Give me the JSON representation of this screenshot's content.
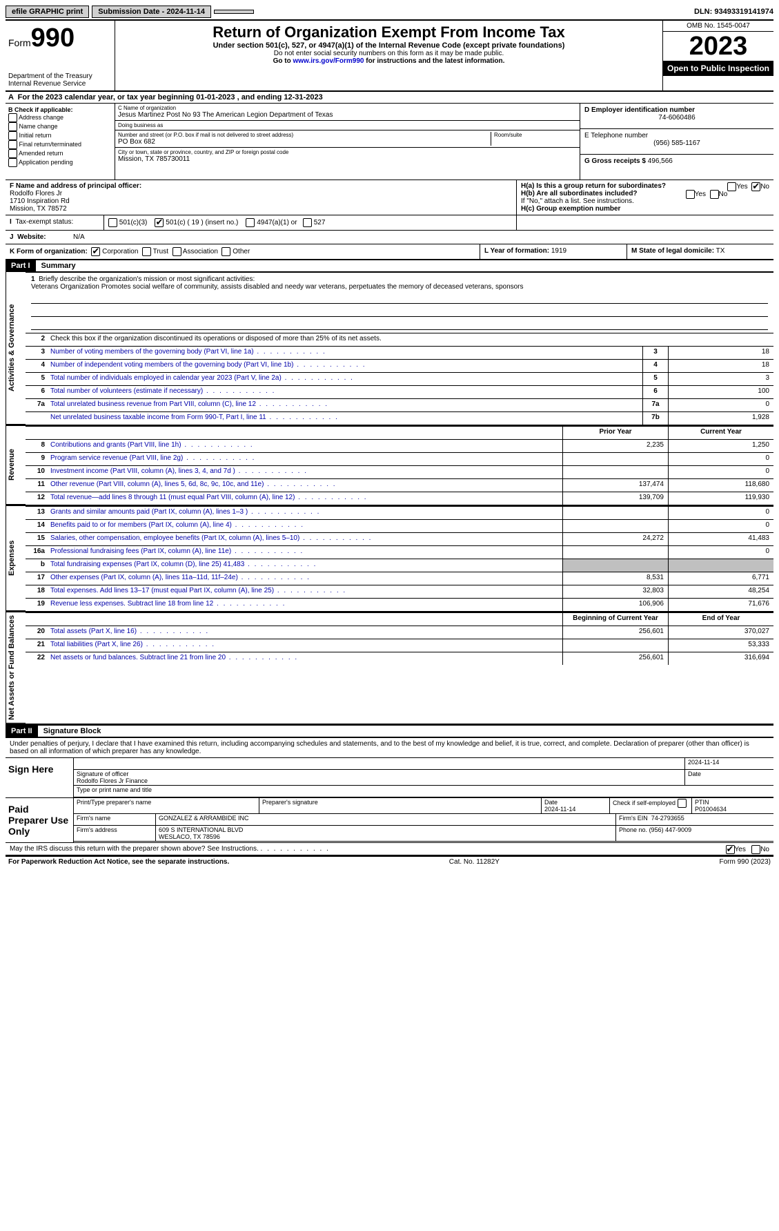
{
  "topbar": {
    "efile": "efile GRAPHIC print",
    "submission_label": "Submission Date - 2024-11-14",
    "dln": "DLN: 93493319141974"
  },
  "header": {
    "form_word": "Form",
    "form_no": "990",
    "dept": "Department of the Treasury\nInternal Revenue Service",
    "title": "Return of Organization Exempt From Income Tax",
    "sub": "Under section 501(c), 527, or 4947(a)(1) of the Internal Revenue Code (except private foundations)",
    "ssn_note": "Do not enter social security numbers on this form as it may be made public.",
    "goto_prefix": "Go to ",
    "goto_link": "www.irs.gov/Form990",
    "goto_suffix": " for instructions and the latest information.",
    "omb": "OMB No. 1545-0047",
    "year": "2023",
    "open": "Open to Public Inspection"
  },
  "a_line": "For the 2023 calendar year, or tax year beginning 01-01-2023    , and ending 12-31-2023",
  "box_b": {
    "label": "B Check if applicable:",
    "items": [
      "Address change",
      "Name change",
      "Initial return",
      "Final return/terminated",
      "Amended return",
      "Application pending"
    ]
  },
  "box_c": {
    "name_hint": "C Name of organization",
    "name": "Jesus Martinez Post No 93 The American Legion Department of Texas",
    "dba_hint": "Doing business as",
    "dba": "",
    "street_hint": "Number and street (or P.O. box if mail is not delivered to street address)",
    "street": "PO Box 682",
    "room_hint": "Room/suite",
    "city_hint": "City or town, state or province, country, and ZIP or foreign postal code",
    "city": "Mission, TX  785730011"
  },
  "box_d": {
    "label": "D Employer identification number",
    "value": "74-6060486"
  },
  "box_e": {
    "label": "E Telephone number",
    "value": "(956) 585-1167"
  },
  "box_g": {
    "label": "G Gross receipts $",
    "value": "496,566"
  },
  "principal": {
    "label": "F  Name and address of principal officer:",
    "name": "Rodolfo Flores Jr",
    "street": "1710 Inspiration Rd",
    "city": "Mission, TX  78572"
  },
  "box_h": {
    "a": "H(a)  Is this a group return for subordinates?",
    "b": "H(b)  Are all subordinates included?",
    "b_note": "If \"No,\" attach a list. See instructions.",
    "c": "H(c)  Group exemption number",
    "yes": "Yes",
    "no": "No"
  },
  "status": {
    "label": "Tax-exempt status:",
    "c3": "501(c)(3)",
    "c": "501(c) ( 19 ) (insert no.)",
    "a1": "4947(a)(1) or",
    "s527": "527"
  },
  "website": {
    "label": "Website:",
    "value": "N/A"
  },
  "form_org": {
    "label": "K Form of organization:",
    "corp": "Corporation",
    "trust": "Trust",
    "assoc": "Association",
    "other": "Other"
  },
  "box_l": {
    "label": "L Year of formation:",
    "value": "1919"
  },
  "box_m": {
    "label": "M State of legal domicile:",
    "value": "TX"
  },
  "part1": {
    "header": "Part I",
    "title": "Summary",
    "mission_label": "Briefly describe the organization's mission or most significant activities:",
    "mission": "Veterans Organization Promotes social welfare of community, assists disabled and needy war veterans, perpetuates the memory of deceased veterans, sponsors",
    "line2": "Check this box      if the organization discontinued its operations or disposed of more than 25% of its net assets.",
    "tab_ag": "Activities & Governance",
    "tab_rev": "Revenue",
    "tab_exp": "Expenses",
    "tab_nab": "Net Assets or Fund Balances",
    "prior_year": "Prior Year",
    "current_year": "Current Year",
    "begin_year": "Beginning of Current Year",
    "end_year": "End of Year",
    "rows_ag": [
      {
        "no": "3",
        "desc": "Number of voting members of the governing body (Part VI, line 1a)",
        "num": "3",
        "val": "18"
      },
      {
        "no": "4",
        "desc": "Number of independent voting members of the governing body (Part VI, line 1b)",
        "num": "4",
        "val": "18"
      },
      {
        "no": "5",
        "desc": "Total number of individuals employed in calendar year 2023 (Part V, line 2a)",
        "num": "5",
        "val": "3"
      },
      {
        "no": "6",
        "desc": "Total number of volunteers (estimate if necessary)",
        "num": "6",
        "val": "100"
      },
      {
        "no": "7a",
        "desc": "Total unrelated business revenue from Part VIII, column (C), line 12",
        "num": "7a",
        "val": "0"
      },
      {
        "no": "",
        "desc": "Net unrelated business taxable income from Form 990-T, Part I, line 11",
        "num": "7b",
        "val": "1,928"
      }
    ],
    "rows_rev": [
      {
        "no": "8",
        "desc": "Contributions and grants (Part VIII, line 1h)",
        "v1": "2,235",
        "v2": "1,250"
      },
      {
        "no": "9",
        "desc": "Program service revenue (Part VIII, line 2g)",
        "v1": "",
        "v2": "0"
      },
      {
        "no": "10",
        "desc": "Investment income (Part VIII, column (A), lines 3, 4, and 7d )",
        "v1": "",
        "v2": "0"
      },
      {
        "no": "11",
        "desc": "Other revenue (Part VIII, column (A), lines 5, 6d, 8c, 9c, 10c, and 11e)",
        "v1": "137,474",
        "v2": "118,680"
      },
      {
        "no": "12",
        "desc": "Total revenue—add lines 8 through 11 (must equal Part VIII, column (A), line 12)",
        "v1": "139,709",
        "v2": "119,930"
      }
    ],
    "rows_exp": [
      {
        "no": "13",
        "desc": "Grants and similar amounts paid (Part IX, column (A), lines 1–3 )",
        "v1": "",
        "v2": "0"
      },
      {
        "no": "14",
        "desc": "Benefits paid to or for members (Part IX, column (A), line 4)",
        "v1": "",
        "v2": "0"
      },
      {
        "no": "15",
        "desc": "Salaries, other compensation, employee benefits (Part IX, column (A), lines 5–10)",
        "v1": "24,272",
        "v2": "41,483"
      },
      {
        "no": "16a",
        "desc": "Professional fundraising fees (Part IX, column (A), line 11e)",
        "v1": "",
        "v2": "0"
      },
      {
        "no": "b",
        "desc": "Total fundraising expenses (Part IX, column (D), line 25) 41,483",
        "v1": "GRAY",
        "v2": "GRAY"
      },
      {
        "no": "17",
        "desc": "Other expenses (Part IX, column (A), lines 11a–11d, 11f–24e)",
        "v1": "8,531",
        "v2": "6,771"
      },
      {
        "no": "18",
        "desc": "Total expenses. Add lines 13–17 (must equal Part IX, column (A), line 25)",
        "v1": "32,803",
        "v2": "48,254"
      },
      {
        "no": "19",
        "desc": "Revenue less expenses. Subtract line 18 from line 12",
        "v1": "106,906",
        "v2": "71,676"
      }
    ],
    "rows_nab": [
      {
        "no": "20",
        "desc": "Total assets (Part X, line 16)",
        "v1": "256,601",
        "v2": "370,027"
      },
      {
        "no": "21",
        "desc": "Total liabilities (Part X, line 26)",
        "v1": "",
        "v2": "53,333"
      },
      {
        "no": "22",
        "desc": "Net assets or fund balances. Subtract line 21 from line 20",
        "v1": "256,601",
        "v2": "316,694"
      }
    ]
  },
  "part2": {
    "header": "Part II",
    "title": "Signature Block",
    "perjury": "Under penalties of perjury, I declare that I have examined this return, including accompanying schedules and statements, and to the best of my knowledge and belief, it is true, correct, and complete. Declaration of preparer (other than officer) is based on all information of which preparer has any knowledge.",
    "sign_here": "Sign Here",
    "sig_officer": "Signature of officer",
    "sig_name": "Rodolfo Flores Jr Finance",
    "sig_type": "Type or print name and title",
    "date1": "2024-11-14",
    "paid": "Paid Preparer Use Only",
    "prep_name_h": "Print/Type preparer's name",
    "prep_sig_h": "Preparer's signature",
    "date_h": "Date",
    "date2": "2024-11-14",
    "check_self": "Check        if self-employed",
    "ptin_h": "PTIN",
    "ptin": "P01004634",
    "firm_name_h": "Firm's name",
    "firm_name": "GONZALEZ & ARRAMBIDE INC",
    "firm_ein_h": "Firm's EIN",
    "firm_ein": "74-2793655",
    "firm_addr_h": "Firm's address",
    "firm_addr": "609 S INTERNATIONAL BLVD\nWESLACO, TX  78596",
    "phone_h": "Phone no.",
    "phone": "(956) 447-9009",
    "discuss": "May the IRS discuss this return with the preparer shown above? See Instructions.",
    "yes": "Yes",
    "no": "No"
  },
  "footer": {
    "left": "For Paperwork Reduction Act Notice, see the separate instructions.",
    "mid": "Cat. No. 11282Y",
    "right": "Form 990 (2023)"
  },
  "colors": {
    "link": "#0000cc",
    "desc": "#0000aa",
    "gray": "#c0c0c0"
  }
}
